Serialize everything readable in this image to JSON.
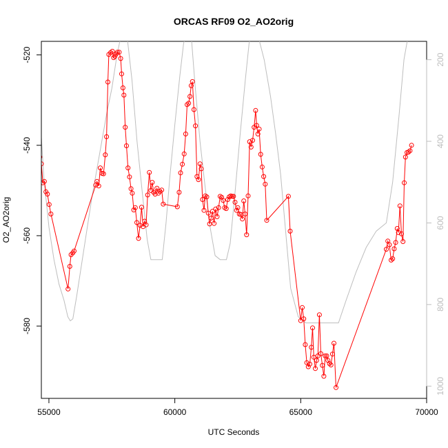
{
  "chart_data": {
    "type": "line",
    "title": "ORCAS RF09 O2_AO2orig",
    "xlabel": "UTC Seconds",
    "ylabel": "O2_AO2orig",
    "y2label": "",
    "xlim": [
      54700,
      70000
    ],
    "ylim": [
      -596,
      -517
    ],
    "y2lim": [
      1030,
      155
    ],
    "x_ticks": [
      55000,
      60000,
      65000,
      70000
    ],
    "y_ticks": [
      -520,
      -540,
      -560,
      -580
    ],
    "y2_ticks": [
      200,
      400,
      600,
      800,
      1000
    ],
    "grid": false,
    "legend": "none",
    "colors": {
      "primary": "#ff0000",
      "secondary": "#bdbdbd"
    },
    "series": [
      {
        "axis": "left",
        "style": "line+points",
        "color": "#ff0000",
        "points": [
          [
            54640,
            -542.6
          ],
          [
            54700,
            -544.1
          ],
          [
            54760,
            -548.3
          ],
          [
            54820,
            -548.0
          ],
          [
            54880,
            -550.3
          ],
          [
            54940,
            -550.8
          ],
          [
            55010,
            -553.1
          ],
          [
            55080,
            -555.2
          ],
          [
            55760,
            -571.8
          ],
          [
            55830,
            -566.8
          ],
          [
            55880,
            -564.2
          ],
          [
            55950,
            -563.8
          ],
          [
            56000,
            -563.4
          ],
          [
            56860,
            -548.8
          ],
          [
            56910,
            -548.0
          ],
          [
            56980,
            -549.0
          ],
          [
            57040,
            -545.0
          ],
          [
            57110,
            -546.2
          ],
          [
            57170,
            -546.3
          ],
          [
            57240,
            -542.1
          ],
          [
            57290,
            -538.1
          ],
          [
            57340,
            -526.0
          ],
          [
            57380,
            -519.9
          ],
          [
            57450,
            -519.5
          ],
          [
            57520,
            -519.2
          ],
          [
            57570,
            -520.6
          ],
          [
            57620,
            -520.3
          ],
          [
            57670,
            -519.8
          ],
          [
            57720,
            -519.4
          ],
          [
            57790,
            -519.4
          ],
          [
            57850,
            -520.8
          ],
          [
            57890,
            -524.2
          ],
          [
            57940,
            -527.3
          ],
          [
            57980,
            -528.9
          ],
          [
            58030,
            -536.0
          ],
          [
            58080,
            -540.1
          ],
          [
            58140,
            -545.0
          ],
          [
            58200,
            -547.0
          ],
          [
            58260,
            -549.6
          ],
          [
            58310,
            -550.6
          ],
          [
            58370,
            -554.3
          ],
          [
            58430,
            -553.8
          ],
          [
            58490,
            -557.1
          ],
          [
            58560,
            -560.6
          ],
          [
            58620,
            -557.7
          ],
          [
            58680,
            -553.7
          ],
          [
            58740,
            -558.0
          ],
          [
            58800,
            -556.8
          ],
          [
            58860,
            -557.6
          ],
          [
            58920,
            -551.0
          ],
          [
            58990,
            -546.0
          ],
          [
            59050,
            -550.0
          ],
          [
            59100,
            -548.2
          ],
          [
            59160,
            -550.4
          ],
          [
            59220,
            -550.8
          ],
          [
            59290,
            -549.5
          ],
          [
            59350,
            -550.6
          ],
          [
            59410,
            -550.2
          ],
          [
            59480,
            -549.9
          ],
          [
            59540,
            -553.0
          ],
          [
            60100,
            -553.6
          ],
          [
            60170,
            -550.4
          ],
          [
            60230,
            -546.1
          ],
          [
            60300,
            -544.2
          ],
          [
            60370,
            -541.9
          ],
          [
            60430,
            -537.5
          ],
          [
            60490,
            -531.0
          ],
          [
            60550,
            -530.7
          ],
          [
            60600,
            -529.2
          ],
          [
            60650,
            -526.8
          ],
          [
            60700,
            -525.9
          ],
          [
            60760,
            -532.1
          ],
          [
            60820,
            -535.7
          ],
          [
            60880,
            -546.9
          ],
          [
            60940,
            -547.6
          ],
          [
            61000,
            -544.1
          ],
          [
            61050,
            -545.2
          ],
          [
            61100,
            -552.0
          ],
          [
            61160,
            -554.4
          ],
          [
            61210,
            -551.2
          ],
          [
            61270,
            -551.4
          ],
          [
            61330,
            -555.0
          ],
          [
            61380,
            -557.4
          ],
          [
            61440,
            -556.1
          ],
          [
            61500,
            -554.6
          ],
          [
            61560,
            -557.3
          ],
          [
            61620,
            -554.1
          ],
          [
            61680,
            -555.8
          ],
          [
            61740,
            -553.8
          ],
          [
            61800,
            -551.3
          ],
          [
            61860,
            -551.5
          ],
          [
            61920,
            -552.2
          ],
          [
            61980,
            -553.8
          ],
          [
            62040,
            -554.0
          ],
          [
            62100,
            -552.0
          ],
          [
            62160,
            -551.4
          ],
          [
            62220,
            -551.2
          ],
          [
            62280,
            -551.3
          ],
          [
            62330,
            -551.3
          ],
          [
            62390,
            -552.6
          ],
          [
            62450,
            -554.4
          ],
          [
            62500,
            -553.8
          ],
          [
            62560,
            -555.2
          ],
          [
            62620,
            -555.3
          ],
          [
            62680,
            -556.3
          ],
          [
            62740,
            -552.3
          ],
          [
            62790,
            -555.2
          ],
          [
            62850,
            -559.8
          ],
          [
            62910,
            -551.2
          ],
          [
            62970,
            -539.2
          ],
          [
            63030,
            -540.4
          ],
          [
            63090,
            -538.9
          ],
          [
            63150,
            -536.0
          ],
          [
            63210,
            -532.3
          ],
          [
            63250,
            -535.6
          ],
          [
            63300,
            -537.5
          ],
          [
            63350,
            -536.4
          ],
          [
            63410,
            -542.0
          ],
          [
            63470,
            -544.8
          ],
          [
            63530,
            -546.9
          ],
          [
            63590,
            -548.6
          ],
          [
            63650,
            -556.6
          ],
          [
            64510,
            -551.3
          ],
          [
            64580,
            -559.0
          ],
          [
            65000,
            -578.8
          ],
          [
            65060,
            -575.9
          ],
          [
            65120,
            -578.4
          ],
          [
            65180,
            -584.1
          ],
          [
            65240,
            -588.1
          ],
          [
            65300,
            -589.0
          ],
          [
            65360,
            -588.4
          ],
          [
            65420,
            -584.7
          ],
          [
            65470,
            -580.4
          ],
          [
            65520,
            -586.9
          ],
          [
            65580,
            -589.4
          ],
          [
            65630,
            -587.6
          ],
          [
            65680,
            -586.6
          ],
          [
            65740,
            -577.5
          ],
          [
            65800,
            -586.1
          ],
          [
            65860,
            -588.7
          ],
          [
            65920,
            -591.1
          ],
          [
            65970,
            -586.6
          ],
          [
            66030,
            -586.6
          ],
          [
            66080,
            -587.6
          ],
          [
            66140,
            -588.3
          ],
          [
            66200,
            -588.6
          ],
          [
            66260,
            -586.2
          ],
          [
            66320,
            -583.8
          ],
          [
            66400,
            -593.6
          ],
          [
            68400,
            -563.0
          ],
          [
            68460,
            -561.2
          ],
          [
            68520,
            -562.0
          ],
          [
            68590,
            -565.4
          ],
          [
            68650,
            -565.1
          ],
          [
            68710,
            -562.9
          ],
          [
            68770,
            -561.5
          ],
          [
            68830,
            -558.4
          ],
          [
            68880,
            -559.3
          ],
          [
            68940,
            -553.4
          ],
          [
            69000,
            -559.6
          ],
          [
            69060,
            -561.3
          ],
          [
            69110,
            -548.3
          ],
          [
            69160,
            -542.6
          ],
          [
            69220,
            -541.6
          ],
          [
            69280,
            -541.5
          ],
          [
            69340,
            -541.2
          ],
          [
            69400,
            -540.0
          ]
        ]
      },
      {
        "axis": "right",
        "style": "line",
        "color": "#bdbdbd",
        "points": [
          [
            54640,
            330
          ],
          [
            54800,
            490
          ],
          [
            55000,
            610
          ],
          [
            55200,
            690
          ],
          [
            55400,
            750
          ],
          [
            55600,
            790
          ],
          [
            55750,
            830
          ],
          [
            55850,
            840
          ],
          [
            55950,
            835
          ],
          [
            56100,
            780
          ],
          [
            56300,
            700
          ],
          [
            56500,
            620
          ],
          [
            56700,
            540
          ],
          [
            56900,
            470
          ],
          [
            57100,
            400
          ],
          [
            57300,
            330
          ],
          [
            57500,
            270
          ],
          [
            57700,
            190
          ],
          [
            57900,
            130
          ],
          [
            58100,
            140
          ],
          [
            58300,
            250
          ],
          [
            58500,
            400
          ],
          [
            58700,
            520
          ],
          [
            58900,
            640
          ],
          [
            59050,
            690
          ],
          [
            59200,
            690
          ],
          [
            59400,
            690
          ],
          [
            59500,
            690
          ],
          [
            59650,
            600
          ],
          [
            59800,
            490
          ],
          [
            60000,
            360
          ],
          [
            60200,
            240
          ],
          [
            60350,
            160
          ],
          [
            60500,
            130
          ],
          [
            60650,
            140
          ],
          [
            60800,
            260
          ],
          [
            61000,
            400
          ],
          [
            61200,
            510
          ],
          [
            61400,
            610
          ],
          [
            61600,
            680
          ],
          [
            61800,
            690
          ],
          [
            62050,
            690
          ],
          [
            62200,
            650
          ],
          [
            62400,
            520
          ],
          [
            62600,
            380
          ],
          [
            62800,
            250
          ],
          [
            62950,
            160
          ],
          [
            63050,
            130
          ],
          [
            63300,
            140
          ],
          [
            63550,
            200
          ],
          [
            63800,
            290
          ],
          [
            64000,
            380
          ],
          [
            64200,
            480
          ],
          [
            64400,
            620
          ],
          [
            64600,
            760
          ],
          [
            64900,
            830
          ],
          [
            65200,
            845
          ],
          [
            66500,
            845
          ],
          [
            66800,
            790
          ],
          [
            67200,
            720
          ],
          [
            67600,
            660
          ],
          [
            68000,
            620
          ],
          [
            68400,
            600
          ],
          [
            68650,
            500
          ],
          [
            68900,
            340
          ],
          [
            69100,
            200
          ],
          [
            69300,
            130
          ]
        ]
      }
    ]
  }
}
